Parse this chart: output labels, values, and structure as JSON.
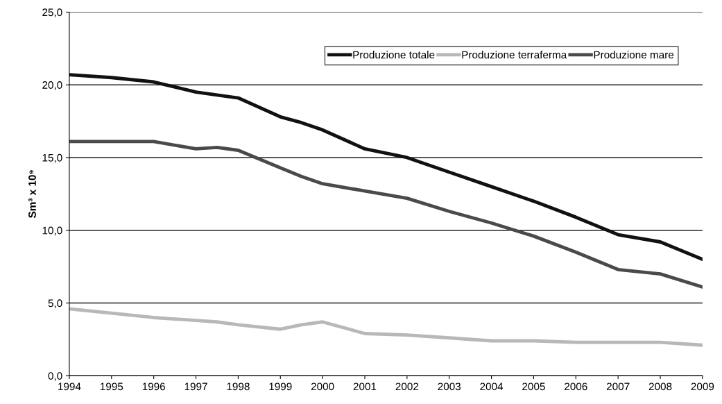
{
  "chart_data": {
    "type": "line",
    "ylabel": "Sm³ x 10⁹",
    "x": [
      1994,
      1995,
      1996,
      1997,
      1997.5,
      1998,
      1999,
      1999.5,
      2000,
      2001,
      2002,
      2003,
      2004,
      2005,
      2006,
      2007,
      2008,
      2009
    ],
    "series": [
      {
        "name": "Produzione totale",
        "color": "#111111",
        "values": [
          20.7,
          20.5,
          20.2,
          19.5,
          19.3,
          19.1,
          17.8,
          17.4,
          16.9,
          15.6,
          15.0,
          14.0,
          13.0,
          12.0,
          10.9,
          9.7,
          9.2,
          8.0
        ]
      },
      {
        "name": "Produzione terraferma",
        "color": "#b8b8b8",
        "values": [
          4.6,
          4.3,
          4.0,
          3.8,
          3.7,
          3.5,
          3.2,
          3.5,
          3.7,
          2.9,
          2.8,
          2.6,
          2.4,
          2.4,
          2.3,
          2.3,
          2.3,
          2.1
        ]
      },
      {
        "name": "Produzione mare",
        "color": "#4a4a4a",
        "values": [
          16.1,
          16.1,
          16.1,
          15.6,
          15.7,
          15.5,
          14.3,
          13.7,
          13.2,
          12.7,
          12.2,
          11.3,
          10.5,
          9.6,
          8.5,
          7.3,
          7.0,
          6.1
        ]
      }
    ],
    "xlim": [
      1994,
      2009
    ],
    "xticks": [
      1994,
      1995,
      1996,
      1997,
      1998,
      1999,
      2000,
      2001,
      2002,
      2003,
      2004,
      2005,
      2006,
      2007,
      2008,
      2009
    ],
    "ylim": [
      0,
      25
    ],
    "yticks": [
      {
        "value": 0,
        "label": "0,0"
      },
      {
        "value": 5,
        "label": "5,0"
      },
      {
        "value": 10,
        "label": "10,0"
      },
      {
        "value": 15,
        "label": "15,0"
      },
      {
        "value": 20,
        "label": "20,0"
      },
      {
        "value": 25,
        "label": "25,0"
      }
    ],
    "grid": "y",
    "legend": "top right",
    "marker": "none",
    "line_style": "solid"
  }
}
